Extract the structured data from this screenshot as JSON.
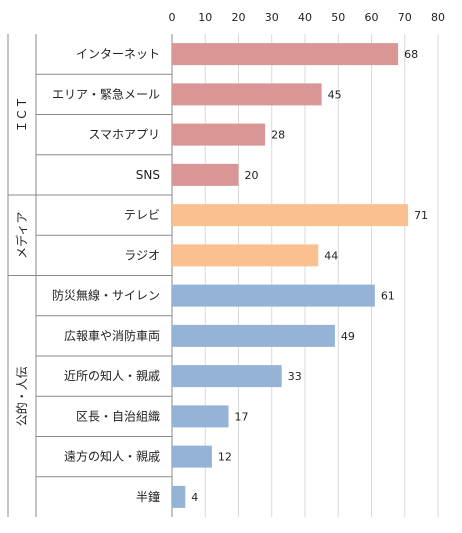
{
  "chart_data": {
    "type": "bar",
    "orientation": "horizontal",
    "xlim": [
      0,
      80
    ],
    "x_ticks": [
      0,
      10,
      20,
      30,
      40,
      50,
      60,
      70,
      80
    ],
    "grid": true,
    "groups": [
      {
        "name": "ＩＣＴ",
        "color": "#DA9694"
      },
      {
        "name": "メディア",
        "color": "#FAC090"
      },
      {
        "name": "公的・人伝",
        "color": "#95B3D7"
      }
    ],
    "bars": [
      {
        "label": "インターネット",
        "value": 68,
        "group": 0
      },
      {
        "label": "エリア・緊急メール",
        "value": 45,
        "group": 0
      },
      {
        "label": "スマホアプリ",
        "value": 28,
        "group": 0
      },
      {
        "label": "SNS",
        "value": 20,
        "group": 0
      },
      {
        "label": "テレビ",
        "value": 71,
        "group": 1
      },
      {
        "label": "ラジオ",
        "value": 44,
        "group": 1
      },
      {
        "label": "防災無線・サイレン",
        "value": 61,
        "group": 2
      },
      {
        "label": "広報車や消防車両",
        "value": 49,
        "group": 2
      },
      {
        "label": "近所の知人・親戚",
        "value": 33,
        "group": 2
      },
      {
        "label": "区長・自治組織",
        "value": 17,
        "group": 2
      },
      {
        "label": "遠方の知人・親戚",
        "value": 12,
        "group": 2
      },
      {
        "label": "半鐘",
        "value": 4,
        "group": 2
      }
    ]
  }
}
